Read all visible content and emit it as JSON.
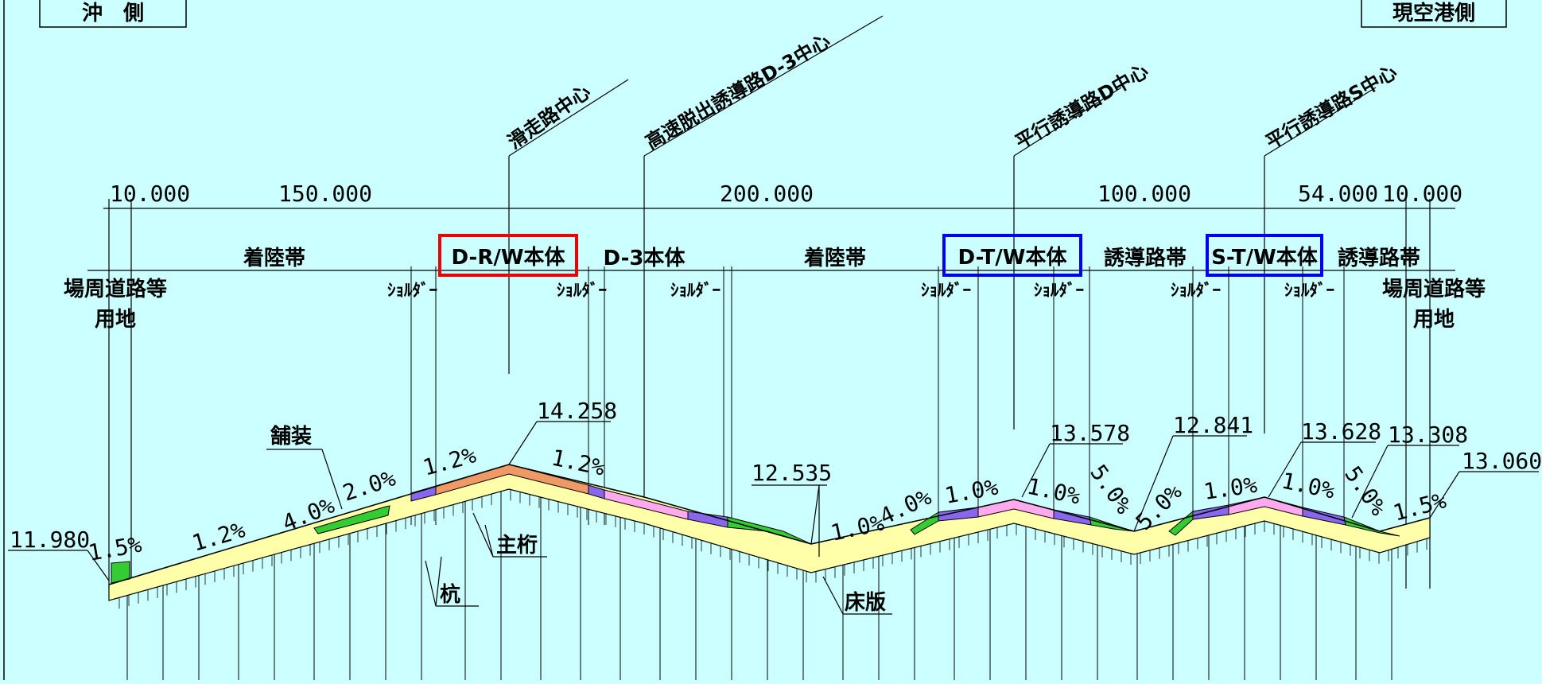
{
  "side_labels": {
    "left": "沖　側",
    "right": "現空港側"
  },
  "centerlines": {
    "runway": "滑走路中心",
    "exit_taxiway": "高速脱出誘導路D-3中心",
    "parallel_taxiway_d": "平行誘導路D中心",
    "parallel_taxiway_s": "平行誘導路S中心"
  },
  "dimensions": [
    "10.000",
    "150.000",
    "200.000",
    "100.000",
    "54.000",
    "10.000"
  ],
  "zones": {
    "landing_strip_1": "着陸帯",
    "dr_main": "D-R/W本体",
    "d3_main": "D-3本体",
    "landing_strip_2": "着陸帯",
    "dt_main": "D-T/W本体",
    "taxiway_strip_1": "誘導路帯",
    "st_main": "S-T/W本体",
    "taxiway_strip_2": "誘導路帯",
    "site_left": "場周道路等\n用地",
    "site_right": "場周道路等\n用地",
    "shoulder": "ｼｮﾙﾀﾞｰ"
  },
  "elevations": [
    "11.980",
    "14.258",
    "12.535",
    "13.578",
    "12.841",
    "13.628",
    "13.308",
    "13.060"
  ],
  "slopes": {
    "s1": "1.5%",
    "s2": "1.2%",
    "s3": "4.0%",
    "s4": "2.0%",
    "s5": "1.2%",
    "s6": "1.2%",
    "s7": "1.0%",
    "s8": "4.0%",
    "s9": "1.0%",
    "s10": "1.0%",
    "s11": "5.0%",
    "s12": "5.0%",
    "s13": "1.0%",
    "s14": "1.0%",
    "s15": "5.0%",
    "s16": "1.5%"
  },
  "components": {
    "pavement": "舗装",
    "girder": "主桁",
    "pile": "杭",
    "deck": "床版"
  },
  "colors": {
    "background": "#ccffff",
    "deck": "#ffffaa",
    "turf": "#33cc33",
    "pavement_runway": "#ee9966",
    "pavement_taxiway": "#ffaaee",
    "shoulder": "#8866ee",
    "frame_red": "#ee0000",
    "frame_blue": "#0000ee"
  }
}
